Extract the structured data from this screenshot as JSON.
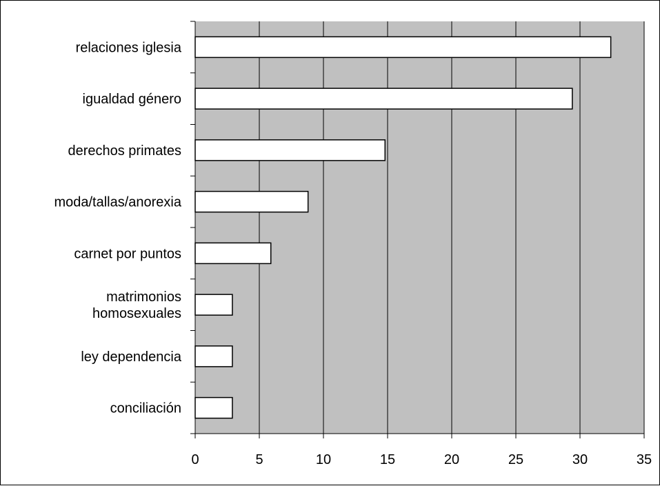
{
  "chart_data": {
    "type": "bar",
    "orientation": "horizontal",
    "categories": [
      "relaciones iglesia",
      "igualdad género",
      "derechos primates",
      "moda/tallas/anorexia",
      "carnet por puntos",
      "matrimonios homosexuales",
      "ley dependencia",
      "conciliación"
    ],
    "category_lines": [
      [
        "relaciones iglesia"
      ],
      [
        "igualdad género"
      ],
      [
        "derechos primates"
      ],
      [
        "moda/tallas/anorexia"
      ],
      [
        "carnet por puntos"
      ],
      [
        "matrimonios",
        "homosexuales"
      ],
      [
        "ley dependencia"
      ],
      [
        "conciliación"
      ]
    ],
    "values": [
      32.4,
      29.4,
      14.8,
      8.8,
      5.9,
      2.9,
      2.9,
      2.9
    ],
    "xlim": [
      0,
      35
    ],
    "xticks": [
      0,
      5,
      10,
      15,
      20,
      25,
      30,
      35
    ],
    "grid": true,
    "legend": "none",
    "title": "",
    "xlabel": "",
    "ylabel": "",
    "colors": {
      "plot_background": "#c0c0c0",
      "bar_fill": "#ffffff",
      "bar_stroke": "#000000",
      "gridline": "#000000"
    }
  }
}
